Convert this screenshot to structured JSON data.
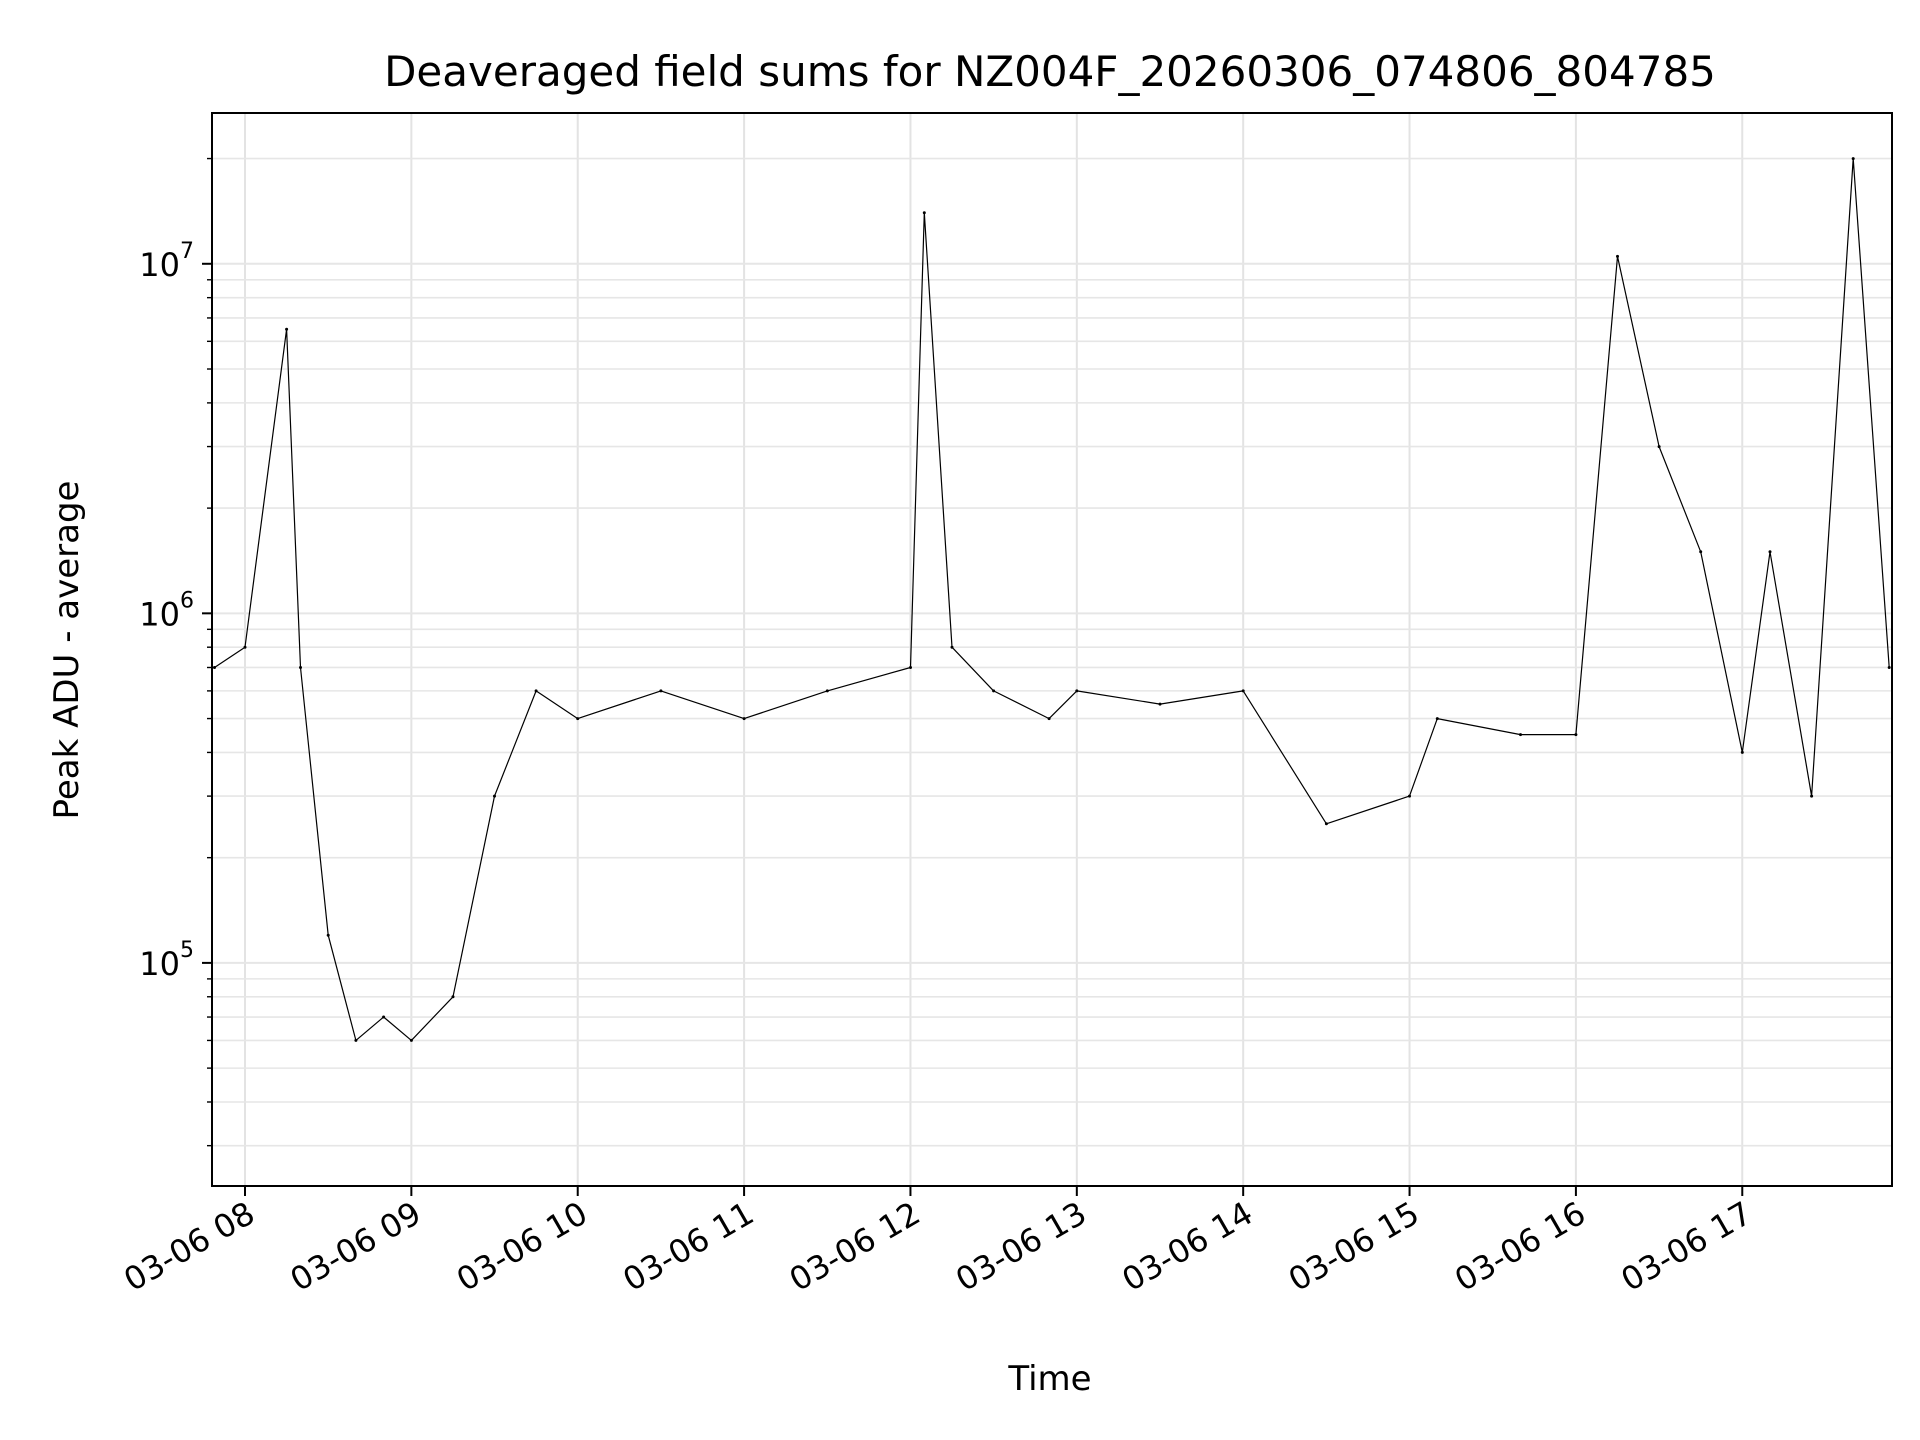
{
  "chart_data": {
    "type": "line",
    "title": "Deaveraged field sums for NZ004F_20260306_074806_804785",
    "xlabel": "Time",
    "ylabel": "Peak ADU - average",
    "yscale": "log",
    "ylim": [
      23000,
      27000000
    ],
    "xlim": [
      "2026-03-06 07:48:06",
      "2026-03-06 17:54:00"
    ],
    "x_ticks": [
      "03-06 08",
      "03-06 09",
      "03-06 10",
      "03-06 11",
      "03-06 12",
      "03-06 13",
      "03-06 14",
      "03-06 15",
      "03-06 16",
      "03-06 17"
    ],
    "y_ticks": [
      {
        "base": "10",
        "exp": "5",
        "value": 100000
      },
      {
        "base": "10",
        "exp": "6",
        "value": 1000000
      },
      {
        "base": "10",
        "exp": "7",
        "value": 10000000
      }
    ],
    "grid": true,
    "line_color": "#000000",
    "series": [
      {
        "x": [
          "2026-03-06 07:49",
          "2026-03-06 08:00",
          "2026-03-06 08:15",
          "2026-03-06 08:20",
          "2026-03-06 08:30",
          "2026-03-06 08:40",
          "2026-03-06 08:50",
          "2026-03-06 09:00",
          "2026-03-06 09:15",
          "2026-03-06 09:30",
          "2026-03-06 09:45",
          "2026-03-06 10:00",
          "2026-03-06 10:30",
          "2026-03-06 11:00",
          "2026-03-06 11:30",
          "2026-03-06 12:00",
          "2026-03-06 12:05",
          "2026-03-06 12:15",
          "2026-03-06 12:30",
          "2026-03-06 12:50",
          "2026-03-06 13:00",
          "2026-03-06 13:30",
          "2026-03-06 14:00",
          "2026-03-06 14:30",
          "2026-03-06 15:00",
          "2026-03-06 15:10",
          "2026-03-06 15:40",
          "2026-03-06 16:00",
          "2026-03-06 16:15",
          "2026-03-06 16:30",
          "2026-03-06 16:45",
          "2026-03-06 17:00",
          "2026-03-06 17:10",
          "2026-03-06 17:25",
          "2026-03-06 17:40",
          "2026-03-06 17:53"
        ],
        "values": [
          700000,
          800000,
          6500000,
          700000,
          120000,
          60000,
          70000,
          60000,
          80000,
          300000,
          600000,
          500000,
          600000,
          500000,
          600000,
          700000,
          14000000,
          800000,
          600000,
          500000,
          600000,
          550000,
          600000,
          250000,
          300000,
          500000,
          450000,
          450000,
          10500000,
          3000000,
          1500000,
          400000,
          1500000,
          300000,
          20000000,
          700000
        ]
      }
    ]
  }
}
